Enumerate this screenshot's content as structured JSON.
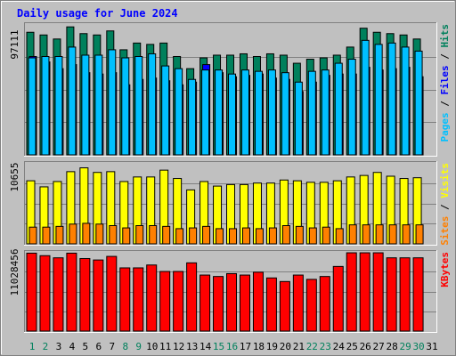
{
  "title": "Daily usage for June 2024",
  "colors": {
    "background": "#c0c0c0",
    "plot_bg": "#c0c0c0",
    "hits": "#00805c",
    "files": "#00c0ff",
    "pages": "#0000ff",
    "visits": "#ffff00",
    "sites": "#ff8000",
    "kbytes": "#ff0000",
    "title": "#0000ff",
    "weekend_day": "#00805c",
    "weekday": "#000000"
  },
  "chart_data": [
    {
      "type": "bar",
      "panel": "top",
      "ymax_label": "97111",
      "ylim": [
        0,
        97111
      ],
      "legend": [
        {
          "text": "Pages",
          "color": "#00c0ff"
        },
        {
          "text": " / ",
          "color": "#000000"
        },
        {
          "text": "Files",
          "color": "#0000ff"
        },
        {
          "text": " / ",
          "color": "#000000"
        },
        {
          "text": "Hits",
          "color": "#00805c"
        }
      ],
      "categories": [
        "1",
        "2",
        "3",
        "4",
        "5",
        "6",
        "7",
        "8",
        "9",
        "10",
        "11",
        "12",
        "13",
        "14",
        "15",
        "16",
        "17",
        "18",
        "19",
        "20",
        "21",
        "22",
        "23",
        "24",
        "25",
        "26",
        "27",
        "28",
        "29",
        "30",
        "31"
      ],
      "series": [
        {
          "name": "Hits",
          "values": [
            91000,
            89000,
            86000,
            95000,
            90000,
            89000,
            92000,
            78000,
            83000,
            82000,
            83000,
            73000,
            64000,
            72000,
            74000,
            74000,
            75000,
            73000,
            75000,
            74000,
            68000,
            71000,
            72000,
            74000,
            80000,
            94000,
            91000,
            90000,
            89000,
            86000,
            null
          ]
        },
        {
          "name": "Files",
          "values": [
            72000,
            73000,
            73000,
            80000,
            74000,
            74000,
            78000,
            72000,
            73000,
            75000,
            66000,
            64000,
            56000,
            63000,
            63000,
            60000,
            63000,
            62000,
            63000,
            61000,
            54000,
            62000,
            63000,
            68000,
            71000,
            85000,
            82000,
            83000,
            80000,
            77000,
            null
          ]
        },
        {
          "name": "Pages",
          "values": [
            73000,
            69000,
            64000,
            67000,
            61000,
            60000,
            61000,
            52000,
            56000,
            57000,
            55000,
            52000,
            54000,
            67000,
            61000,
            58000,
            59000,
            60000,
            57000,
            56000,
            47000,
            54000,
            59000,
            60000,
            60000,
            65000,
            63000,
            64000,
            65000,
            58000,
            null
          ]
        }
      ]
    },
    {
      "type": "bar",
      "panel": "middle",
      "ymax_label": "10655",
      "ylim": [
        0,
        10655
      ],
      "legend": [
        {
          "text": "Sites",
          "color": "#ff8000"
        },
        {
          "text": " / ",
          "color": "#000000"
        },
        {
          "text": "Visits",
          "color": "#ffff00"
        }
      ],
      "categories": [
        "1",
        "2",
        "3",
        "4",
        "5",
        "6",
        "7",
        "8",
        "9",
        "10",
        "11",
        "12",
        "13",
        "14",
        "15",
        "16",
        "17",
        "18",
        "19",
        "20",
        "21",
        "22",
        "23",
        "24",
        "25",
        "26",
        "27",
        "28",
        "29",
        "30",
        "31"
      ],
      "series": [
        {
          "name": "Visits",
          "values": [
            8300,
            7500,
            8200,
            9500,
            10000,
            9400,
            9500,
            8200,
            8800,
            8800,
            9700,
            8600,
            7100,
            8200,
            7600,
            7800,
            7800,
            8000,
            8000,
            8400,
            8300,
            8100,
            8100,
            8300,
            8800,
            9000,
            9400,
            8900,
            8600,
            8700,
            null
          ]
        },
        {
          "name": "Sites",
          "values": [
            2200,
            2200,
            2300,
            2600,
            2700,
            2600,
            2400,
            2100,
            2400,
            2400,
            2300,
            2000,
            2100,
            2300,
            2000,
            2000,
            2100,
            2000,
            2100,
            2400,
            2300,
            2100,
            2200,
            2000,
            2500,
            2500,
            2500,
            2500,
            2500,
            2500,
            null
          ]
        }
      ]
    },
    {
      "type": "bar",
      "panel": "bottom",
      "ymax_label": "11028456",
      "ylim": [
        0,
        11028456
      ],
      "legend": [
        {
          "text": "KBytes",
          "color": "#ff0000"
        }
      ],
      "categories": [
        "1",
        "2",
        "3",
        "4",
        "5",
        "6",
        "7",
        "8",
        "9",
        "10",
        "11",
        "12",
        "13",
        "14",
        "15",
        "16",
        "17",
        "18",
        "19",
        "20",
        "21",
        "22",
        "23",
        "24",
        "25",
        "26",
        "27",
        "28",
        "29",
        "30",
        "31"
      ],
      "series": [
        {
          "name": "KBytes",
          "values": [
            10850000,
            10500000,
            10200000,
            10850000,
            10100000,
            9900000,
            10400000,
            8800000,
            8800000,
            9200000,
            8300000,
            8300000,
            9500000,
            7800000,
            7600000,
            8000000,
            7800000,
            8200000,
            7400000,
            6900000,
            7800000,
            7200000,
            7600000,
            9000000,
            10900000,
            10900000,
            10900000,
            10200000,
            10200000,
            10200000,
            null
          ]
        }
      ]
    }
  ],
  "x_axis": {
    "labels": [
      "1",
      "2",
      "3",
      "4",
      "5",
      "6",
      "7",
      "8",
      "9",
      "10",
      "11",
      "12",
      "13",
      "14",
      "15",
      "16",
      "17",
      "18",
      "19",
      "20",
      "21",
      "22",
      "23",
      "24",
      "25",
      "26",
      "27",
      "28",
      "29",
      "30",
      "31"
    ],
    "weekend": [
      1,
      2,
      8,
      9,
      15,
      16,
      22,
      23,
      29,
      30
    ]
  }
}
